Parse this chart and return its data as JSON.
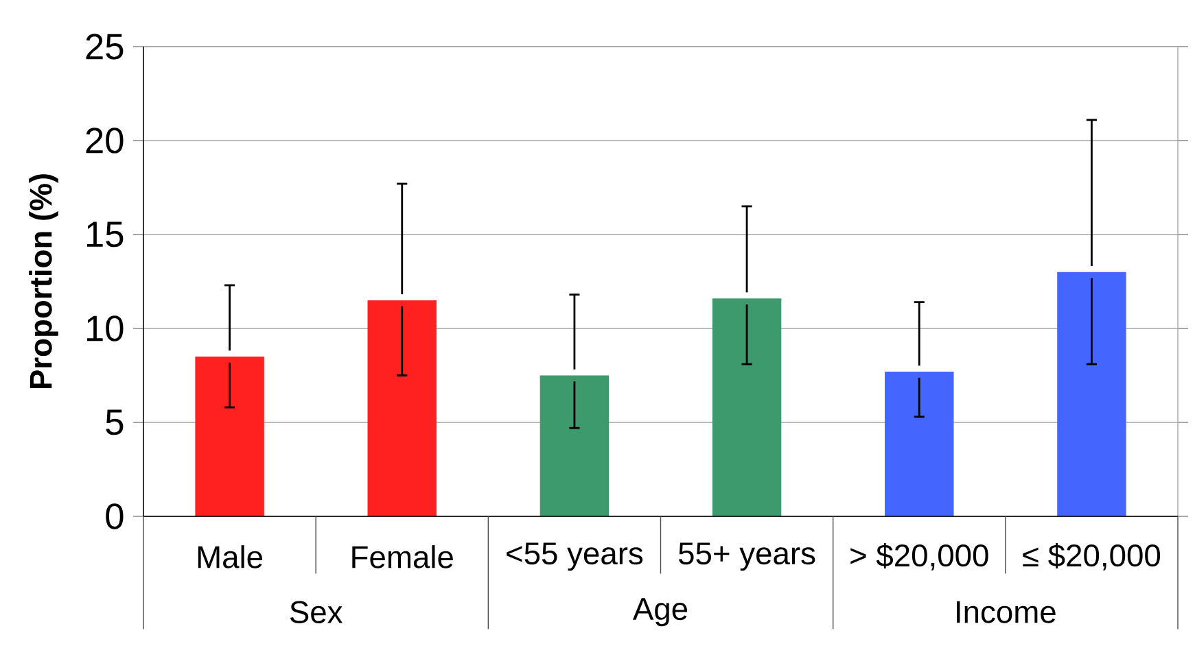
{
  "chart_data": {
    "type": "bar",
    "ylabel": "Proportion (%)",
    "categories": [
      "Male",
      "Female",
      "<55 years",
      "55+ years",
      "> $20,000",
      "≤ $20,000"
    ],
    "values": [
      8.5,
      11.5,
      7.5,
      11.6,
      7.7,
      13.0
    ],
    "errors": [
      [
        5.8,
        12.3
      ],
      [
        7.5,
        17.7
      ],
      [
        4.7,
        11.8
      ],
      [
        8.1,
        16.5
      ],
      [
        5.3,
        11.4
      ],
      [
        8.1,
        21.1
      ]
    ],
    "colors": [
      "#ff2020",
      "#ff2020",
      "#3c9a6c",
      "#3c9a6c",
      "#4466ff",
      "#4466ff"
    ],
    "annotations": [
      "Sex",
      "Age",
      "Income"
    ],
    "ylim": [
      0,
      25
    ],
    "yticks": [
      0,
      5,
      10,
      15,
      20,
      25
    ],
    "grid": "y"
  }
}
